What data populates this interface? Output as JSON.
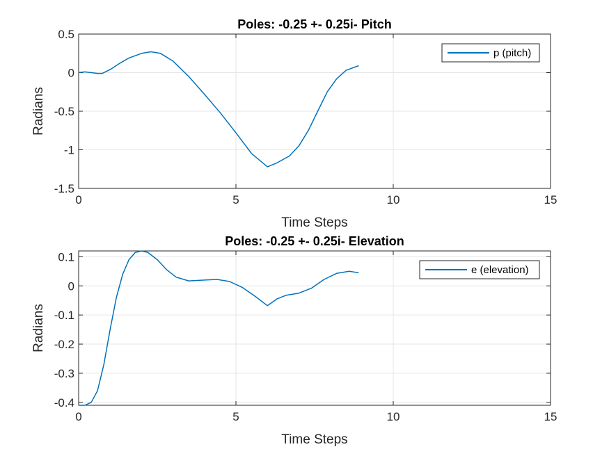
{
  "chart_data": [
    {
      "type": "line",
      "title": "Poles: -0.25 +- 0.25i- Pitch",
      "xlabel": "Time Steps",
      "ylabel": "Radians",
      "xlim": [
        0,
        15
      ],
      "ylim": [
        -1.5,
        0.5
      ],
      "x_ticks": [
        0,
        5,
        10,
        15
      ],
      "x_tick_labels": [
        "0",
        "5",
        "10",
        "15"
      ],
      "y_ticks": [
        -1.5,
        -1,
        -0.5,
        0,
        0.5
      ],
      "y_tick_labels": [
        "-1.5",
        "-1",
        "-0.5",
        "0",
        "0.5"
      ],
      "grid": true,
      "legend_position": "top-right",
      "color": "#0072BD",
      "series": [
        {
          "name": "p (pitch)",
          "x": [
            0,
            0.2,
            0.4,
            0.6,
            0.75,
            1.0,
            1.3,
            1.6,
            2.0,
            2.3,
            2.6,
            3.0,
            3.5,
            4.0,
            4.5,
            5.0,
            5.5,
            6.0,
            6.3,
            6.7,
            7.0,
            7.3,
            7.6,
            7.9,
            8.2,
            8.5,
            8.9
          ],
          "y": [
            0.0,
            0.01,
            0.0,
            -0.01,
            -0.01,
            0.04,
            0.12,
            0.19,
            0.25,
            0.27,
            0.25,
            0.15,
            -0.05,
            -0.28,
            -0.52,
            -0.78,
            -1.05,
            -1.22,
            -1.17,
            -1.08,
            -0.95,
            -0.75,
            -0.5,
            -0.25,
            -0.08,
            0.03,
            0.09
          ]
        }
      ]
    },
    {
      "type": "line",
      "title": "Poles: -0.25 +- 0.25i- Elevation",
      "xlabel": "Time Steps",
      "ylabel": "Radians",
      "xlim": [
        0,
        15
      ],
      "ylim": [
        -0.41,
        0.12
      ],
      "x_ticks": [
        0,
        5,
        10,
        15
      ],
      "x_tick_labels": [
        "0",
        "5",
        "10",
        "15"
      ],
      "y_ticks": [
        -0.4,
        -0.3,
        -0.2,
        -0.1,
        0,
        0.1
      ],
      "y_tick_labels": [
        "-0.4",
        "-0.3",
        "-0.2",
        "-0.1",
        "0",
        "0.1"
      ],
      "grid": true,
      "legend_position": "top-right",
      "color": "#0072BD",
      "series": [
        {
          "name": "e (elevation)",
          "x": [
            0,
            0.2,
            0.4,
            0.6,
            0.8,
            1.0,
            1.2,
            1.4,
            1.6,
            1.8,
            2.0,
            2.2,
            2.5,
            2.8,
            3.1,
            3.5,
            4.0,
            4.4,
            4.8,
            5.2,
            5.6,
            6.0,
            6.3,
            6.6,
            7.0,
            7.4,
            7.8,
            8.2,
            8.6,
            8.9
          ],
          "y": [
            -0.41,
            -0.41,
            -0.4,
            -0.36,
            -0.27,
            -0.15,
            -0.04,
            0.04,
            0.09,
            0.115,
            0.12,
            0.115,
            0.09,
            0.055,
            0.03,
            0.017,
            0.02,
            0.022,
            0.015,
            -0.005,
            -0.035,
            -0.068,
            -0.045,
            -0.032,
            -0.025,
            -0.008,
            0.022,
            0.043,
            0.05,
            0.045
          ]
        }
      ]
    }
  ]
}
